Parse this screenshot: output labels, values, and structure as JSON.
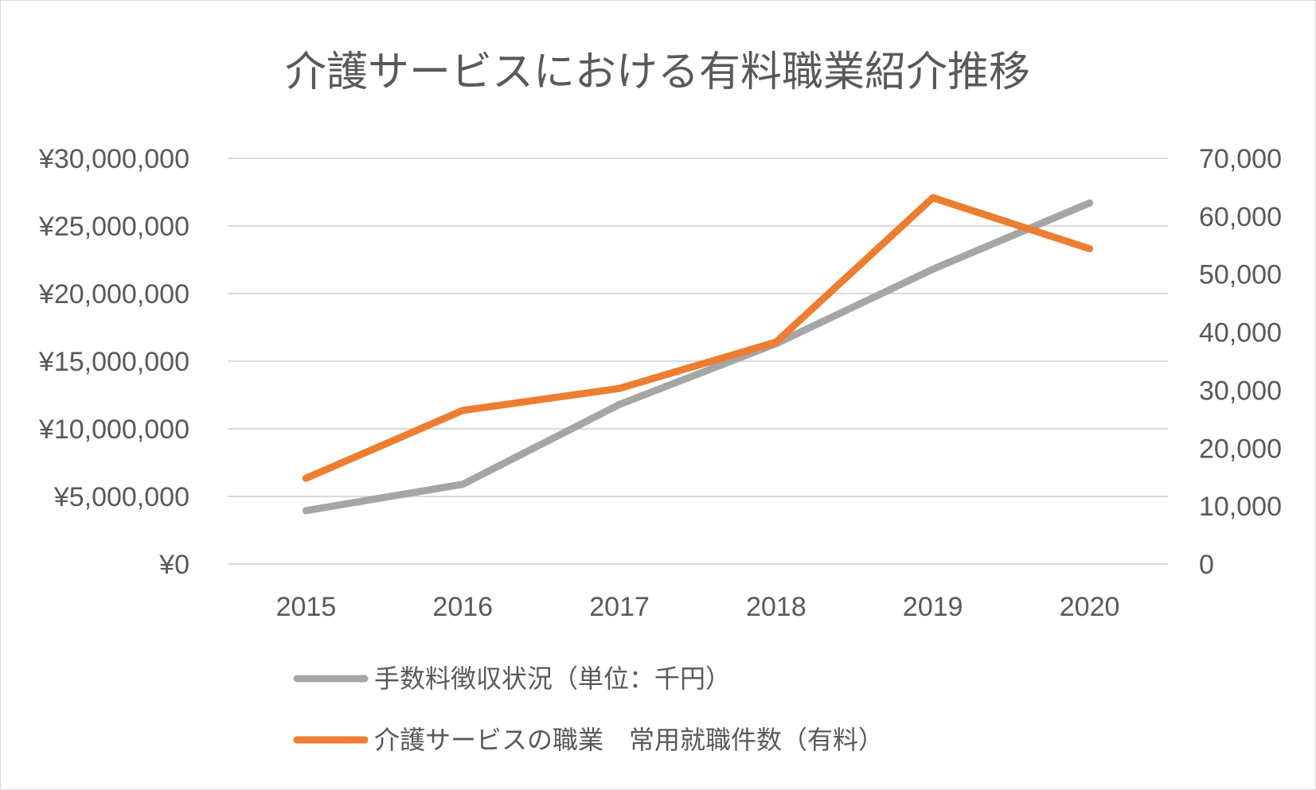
{
  "chart_data": {
    "type": "line",
    "title": "介護サービスにおける有料職業紹介推移",
    "categories": [
      "2015",
      "2016",
      "2017",
      "2018",
      "2019",
      "2020"
    ],
    "y_left": {
      "range": [
        0,
        30000000
      ],
      "ticks": [
        0,
        5000000,
        10000000,
        15000000,
        20000000,
        25000000,
        30000000
      ],
      "tick_labels": [
        "¥0",
        "¥5,000,000",
        "¥10,000,000",
        "¥15,000,000",
        "¥20,000,000",
        "¥25,000,000",
        "¥30,000,000"
      ]
    },
    "y_right": {
      "range": [
        0,
        70000
      ],
      "ticks": [
        0,
        10000,
        20000,
        30000,
        40000,
        50000,
        60000,
        70000
      ],
      "tick_labels": [
        "0",
        "10,000",
        "20,000",
        "30,000",
        "40,000",
        "50,000",
        "60,000",
        "70,000"
      ]
    },
    "grid": true,
    "legend_position": "bottom",
    "series": [
      {
        "name": "手数料徴収状況（単位：千円）",
        "axis": "left",
        "color": "#a5a5a5",
        "values": [
          3950000,
          5900000,
          11800000,
          16300000,
          21800000,
          26700000
        ]
      },
      {
        "name": "介護サービスの職業　常用就職件数（有料）",
        "axis": "right",
        "color": "#ed7d31",
        "values": [
          14800,
          26500,
          30300,
          38300,
          63200,
          54400
        ]
      }
    ]
  }
}
